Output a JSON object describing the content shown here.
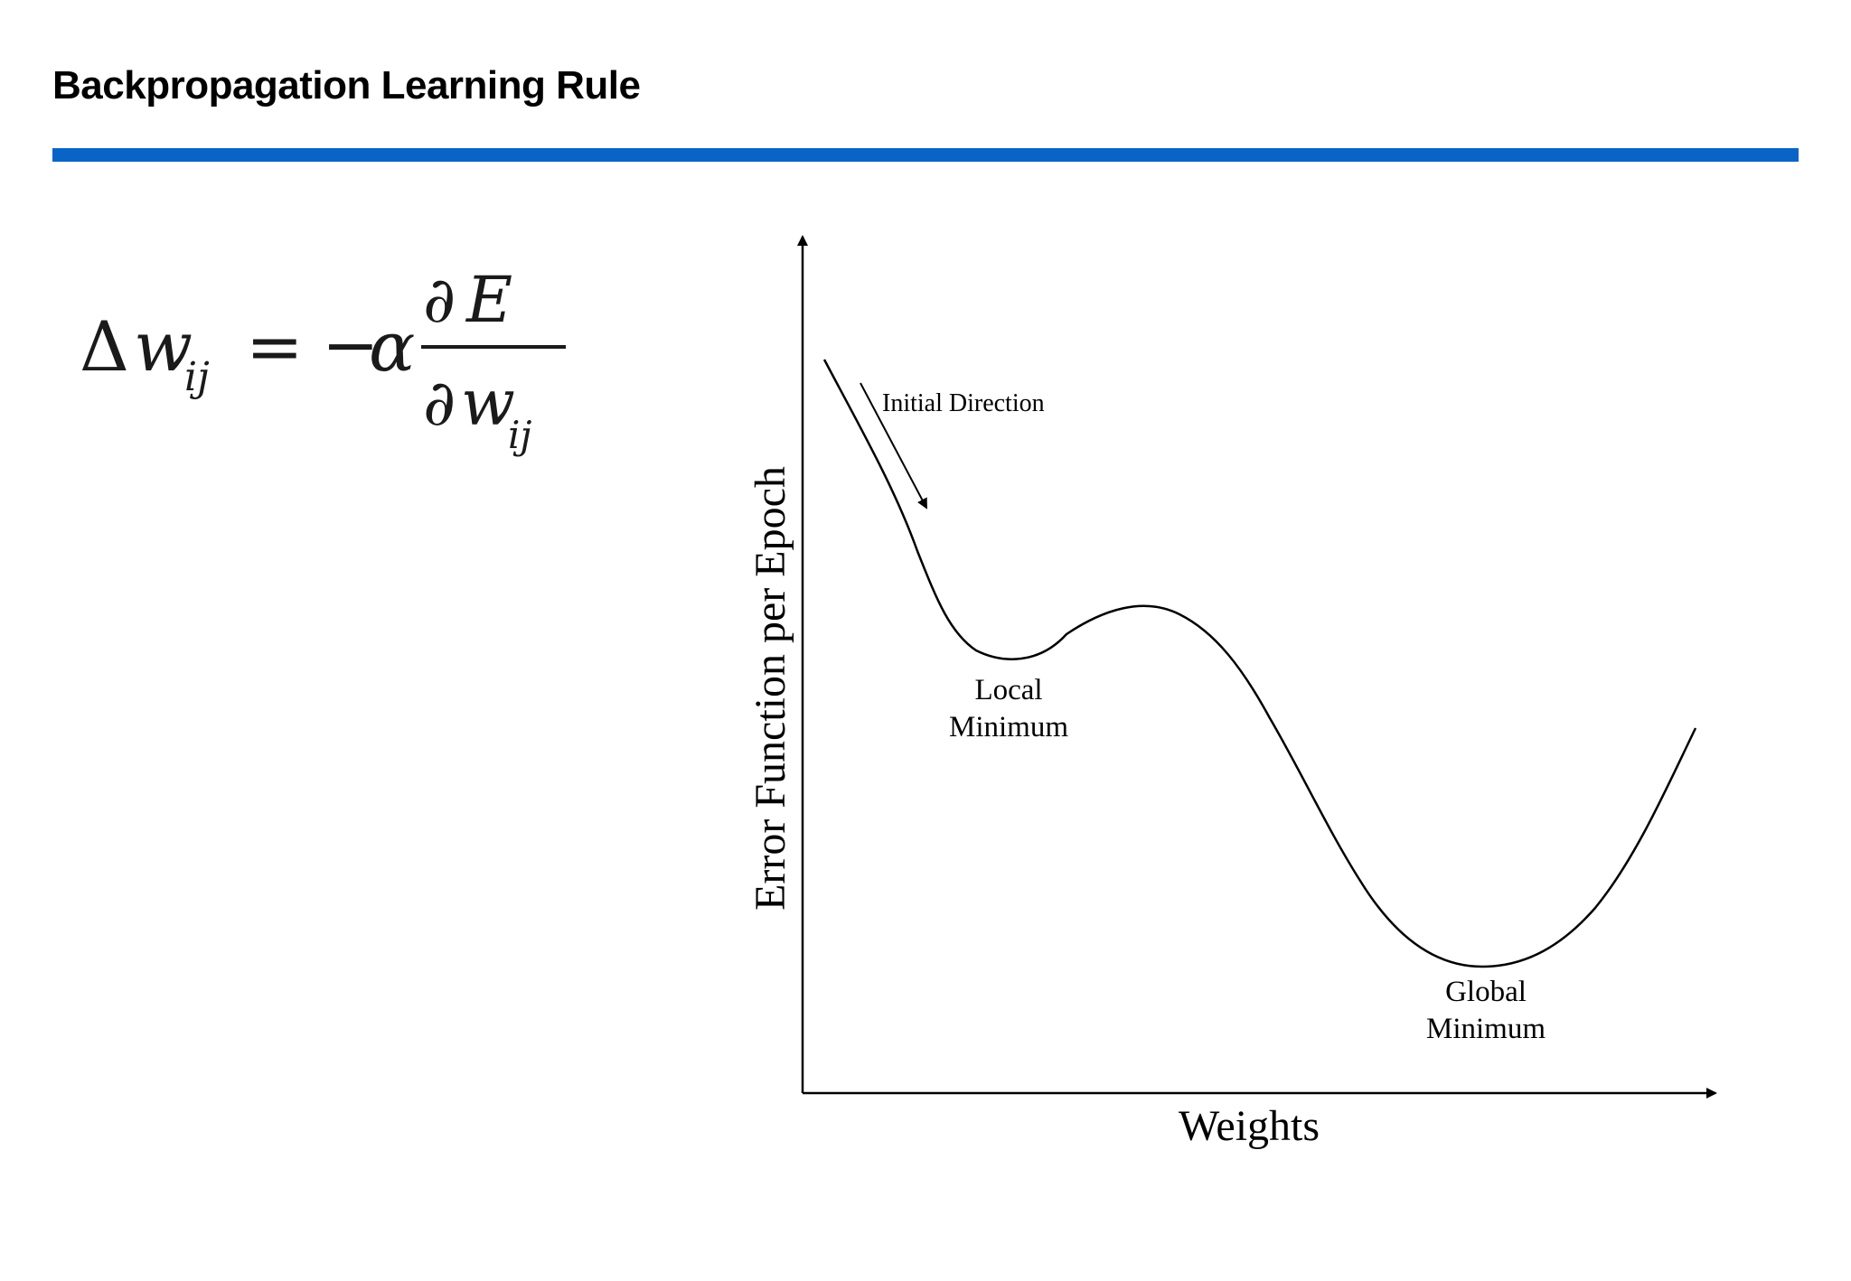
{
  "slide": {
    "title": "Backpropagation Learning Rule",
    "accent_color": "#0a64c8"
  },
  "formula": {
    "lhs_delta": "Δ",
    "lhs_var": "w",
    "lhs_sub": "ij",
    "equals": "=",
    "minus": "−",
    "alpha": "α",
    "num_partial": "∂",
    "num_var": "E",
    "den_partial": "∂",
    "den_var": "w",
    "den_sub": "ij"
  },
  "diagram": {
    "y_axis_label": "Error Function per Epoch",
    "x_axis_label": "Weights",
    "initial_direction_label": "Initial Direction",
    "local_minimum_label": [
      "Local",
      "Minimum"
    ],
    "global_minimum_label": [
      "Global",
      "Minimum"
    ]
  }
}
